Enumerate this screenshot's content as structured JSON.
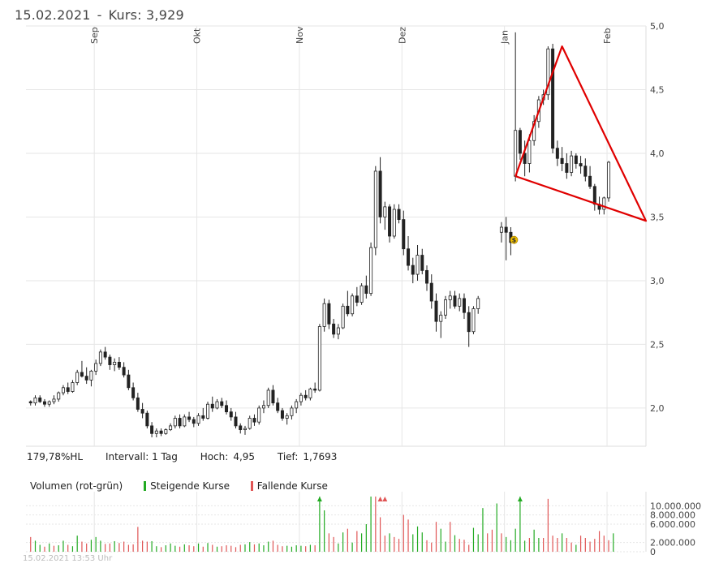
{
  "header": {
    "date": "15.02.2021",
    "separator": "-",
    "kurs_label": "Kurs:",
    "kurs_value": "3,929"
  },
  "stats": {
    "hl": "179,78%HL",
    "interval": "Intervall: 1 Tag",
    "hoch_label": "Hoch:",
    "hoch_value": "4,95",
    "tief_label": "Tief:",
    "tief_value": "1,7693"
  },
  "volume_legend": {
    "title": "Volumen (rot-grün)",
    "rising": "Steigende Kurse",
    "falling": "Fallende Kurse"
  },
  "colors": {
    "rising_volume": "#22aa22",
    "falling_volume": "#e05555",
    "triangle": "#e00000",
    "candle": "#222222",
    "grid": "#e6e6e6",
    "dividend_marker": "#f2c200"
  },
  "footer": {
    "timestamp": "15.02.2021 13:53 Uhr"
  },
  "chart_data": [
    {
      "type": "candlestick",
      "x_unit": "trading day",
      "month_labels": [
        {
          "label": "Sep",
          "day": 14
        },
        {
          "label": "Okt",
          "day": 36
        },
        {
          "label": "Nov",
          "day": 58
        },
        {
          "label": "Dez",
          "day": 80
        },
        {
          "label": "Jan",
          "day": 102
        },
        {
          "label": "Feb",
          "day": 124
        }
      ],
      "y_ticks": [
        "2,0",
        "2,5",
        "3,0",
        "3,5",
        "4,0",
        "4,5",
        "5,0"
      ],
      "ylim": [
        1.7,
        5.0
      ],
      "y_tick_values": [
        2.0,
        2.5,
        3.0,
        3.5,
        4.0,
        4.5,
        5.0
      ],
      "grid": true,
      "candles": [
        [
          2.05,
          2.06,
          2.02,
          2.04
        ],
        [
          2.04,
          2.1,
          2.02,
          2.08
        ],
        [
          2.08,
          2.1,
          2.04,
          2.05
        ],
        [
          2.05,
          2.07,
          2.01,
          2.03
        ],
        [
          2.03,
          2.06,
          2.01,
          2.05
        ],
        [
          2.05,
          2.1,
          2.03,
          2.07
        ],
        [
          2.07,
          2.13,
          2.05,
          2.12
        ],
        [
          2.12,
          2.18,
          2.1,
          2.16
        ],
        [
          2.16,
          2.2,
          2.11,
          2.13
        ],
        [
          2.13,
          2.22,
          2.12,
          2.2
        ],
        [
          2.2,
          2.3,
          2.18,
          2.28
        ],
        [
          2.28,
          2.37,
          2.24,
          2.25
        ],
        [
          2.25,
          2.32,
          2.19,
          2.22
        ],
        [
          2.22,
          2.3,
          2.17,
          2.29
        ],
        [
          2.29,
          2.38,
          2.26,
          2.35
        ],
        [
          2.35,
          2.46,
          2.33,
          2.44
        ],
        [
          2.44,
          2.48,
          2.38,
          2.4
        ],
        [
          2.4,
          2.42,
          2.3,
          2.34
        ],
        [
          2.34,
          2.39,
          2.29,
          2.36
        ],
        [
          2.36,
          2.4,
          2.3,
          2.32
        ],
        [
          2.32,
          2.36,
          2.24,
          2.26
        ],
        [
          2.26,
          2.3,
          2.14,
          2.16
        ],
        [
          2.16,
          2.2,
          2.06,
          2.08
        ],
        [
          2.08,
          2.12,
          1.97,
          1.99
        ],
        [
          1.99,
          2.04,
          1.92,
          1.96
        ],
        [
          1.96,
          1.98,
          1.84,
          1.86
        ],
        [
          1.86,
          1.89,
          1.77,
          1.8
        ],
        [
          1.8,
          1.84,
          1.77,
          1.82
        ],
        [
          1.82,
          1.84,
          1.78,
          1.8
        ],
        [
          1.8,
          1.84,
          1.79,
          1.83
        ],
        [
          1.83,
          1.88,
          1.82,
          1.86
        ],
        [
          1.86,
          1.94,
          1.84,
          1.92
        ],
        [
          1.92,
          1.95,
          1.84,
          1.86
        ],
        [
          1.86,
          1.95,
          1.85,
          1.93
        ],
        [
          1.93,
          1.97,
          1.89,
          1.91
        ],
        [
          1.91,
          1.93,
          1.85,
          1.88
        ],
        [
          1.88,
          1.96,
          1.86,
          1.94
        ],
        [
          1.94,
          2.0,
          1.9,
          1.92
        ],
        [
          1.92,
          2.05,
          1.91,
          2.03
        ],
        [
          2.03,
          2.09,
          1.97,
          2.0
        ],
        [
          2.0,
          2.07,
          1.99,
          2.05
        ],
        [
          2.05,
          2.08,
          2.0,
          2.02
        ],
        [
          2.02,
          2.06,
          1.95,
          1.97
        ],
        [
          1.97,
          2.0,
          1.9,
          1.93
        ],
        [
          1.93,
          1.97,
          1.84,
          1.86
        ],
        [
          1.86,
          1.88,
          1.8,
          1.83
        ],
        [
          1.83,
          1.86,
          1.79,
          1.84
        ],
        [
          1.84,
          1.94,
          1.83,
          1.92
        ],
        [
          1.92,
          1.95,
          1.86,
          1.89
        ],
        [
          1.89,
          2.02,
          1.87,
          2.0
        ],
        [
          2.0,
          2.06,
          1.96,
          2.02
        ],
        [
          2.02,
          2.16,
          2.0,
          2.14
        ],
        [
          2.14,
          2.18,
          2.02,
          2.04
        ],
        [
          2.04,
          2.08,
          1.96,
          1.98
        ],
        [
          1.98,
          2.0,
          1.9,
          1.92
        ],
        [
          1.92,
          1.96,
          1.87,
          1.94
        ],
        [
          1.94,
          2.02,
          1.91,
          2.0
        ],
        [
          2.0,
          2.07,
          1.96,
          2.05
        ],
        [
          2.05,
          2.12,
          2.02,
          2.1
        ],
        [
          2.1,
          2.14,
          2.06,
          2.08
        ],
        [
          2.08,
          2.16,
          2.06,
          2.15
        ],
        [
          2.15,
          2.2,
          2.12,
          2.14
        ],
        [
          2.14,
          2.66,
          2.13,
          2.64
        ],
        [
          2.64,
          2.86,
          2.6,
          2.82
        ],
        [
          2.82,
          2.85,
          2.62,
          2.66
        ],
        [
          2.66,
          2.7,
          2.55,
          2.58
        ],
        [
          2.58,
          2.66,
          2.54,
          2.63
        ],
        [
          2.63,
          2.82,
          2.62,
          2.8
        ],
        [
          2.8,
          2.92,
          2.72,
          2.74
        ],
        [
          2.74,
          2.9,
          2.72,
          2.88
        ],
        [
          2.88,
          2.95,
          2.8,
          2.83
        ],
        [
          2.83,
          2.98,
          2.81,
          2.96
        ],
        [
          2.96,
          3.04,
          2.86,
          2.9
        ],
        [
          2.9,
          3.3,
          2.88,
          3.26
        ],
        [
          3.26,
          3.9,
          3.2,
          3.86
        ],
        [
          3.86,
          3.97,
          3.45,
          3.5
        ],
        [
          3.5,
          3.62,
          3.4,
          3.58
        ],
        [
          3.58,
          3.6,
          3.3,
          3.35
        ],
        [
          3.35,
          3.6,
          3.33,
          3.56
        ],
        [
          3.56,
          3.6,
          3.45,
          3.48
        ],
        [
          3.48,
          3.55,
          3.2,
          3.25
        ],
        [
          3.25,
          3.35,
          3.08,
          3.12
        ],
        [
          3.12,
          3.18,
          2.98,
          3.05
        ],
        [
          3.05,
          3.28,
          3.0,
          3.2
        ],
        [
          3.2,
          3.25,
          3.05,
          3.08
        ],
        [
          3.08,
          3.12,
          2.92,
          2.98
        ],
        [
          2.98,
          3.05,
          2.78,
          2.84
        ],
        [
          2.84,
          2.9,
          2.6,
          2.68
        ],
        [
          2.68,
          2.76,
          2.55,
          2.73
        ],
        [
          2.73,
          2.88,
          2.7,
          2.85
        ],
        [
          2.85,
          2.92,
          2.78,
          2.88
        ],
        [
          2.88,
          2.92,
          2.78,
          2.8
        ],
        [
          2.8,
          2.9,
          2.76,
          2.86
        ],
        [
          2.86,
          2.9,
          2.7,
          2.75
        ],
        [
          2.75,
          2.8,
          2.48,
          2.6
        ],
        [
          2.6,
          2.8,
          2.58,
          2.78
        ],
        [
          2.78,
          2.88,
          2.74,
          2.86
        ],
        [
          3.38,
          3.46,
          3.3,
          3.42
        ],
        [
          3.42,
          3.5,
          3.16,
          3.38
        ],
        [
          3.38,
          3.42,
          3.2,
          3.3
        ],
        [
          3.82,
          4.95,
          3.78,
          4.18
        ],
        [
          4.18,
          4.2,
          3.95,
          4.0
        ],
        [
          4.0,
          4.1,
          3.82,
          3.92
        ],
        [
          3.92,
          4.15,
          3.85,
          4.1
        ],
        [
          4.1,
          4.3,
          4.06,
          4.25
        ],
        [
          4.25,
          4.45,
          4.2,
          4.42
        ],
        [
          4.42,
          4.5,
          4.38,
          4.46
        ],
        [
          4.46,
          4.84,
          4.42,
          4.82
        ],
        [
          4.82,
          4.86,
          4.0,
          4.04
        ],
        [
          4.04,
          4.1,
          3.9,
          3.96
        ],
        [
          3.96,
          4.05,
          3.86,
          3.92
        ],
        [
          3.92,
          4.0,
          3.8,
          3.85
        ],
        [
          3.85,
          4.02,
          3.82,
          3.98
        ],
        [
          3.98,
          4.0,
          3.88,
          3.92
        ],
        [
          3.92,
          3.98,
          3.84,
          3.9
        ],
        [
          3.9,
          3.96,
          3.78,
          3.82
        ],
        [
          3.82,
          3.9,
          3.72,
          3.74
        ],
        [
          3.74,
          3.76,
          3.55,
          3.6
        ],
        [
          3.6,
          3.66,
          3.52,
          3.56
        ],
        [
          3.56,
          3.66,
          3.52,
          3.65
        ],
        [
          3.65,
          3.94,
          3.62,
          3.93
        ]
      ],
      "candle_days": [
        0,
        1,
        2,
        3,
        4,
        5,
        6,
        7,
        8,
        9,
        10,
        11,
        12,
        13,
        14,
        15,
        16,
        17,
        18,
        19,
        20,
        21,
        22,
        23,
        24,
        25,
        26,
        27,
        28,
        29,
        30,
        31,
        32,
        33,
        34,
        35,
        36,
        37,
        38,
        39,
        40,
        41,
        42,
        43,
        44,
        45,
        46,
        47,
        48,
        49,
        50,
        51,
        52,
        53,
        54,
        55,
        56,
        57,
        58,
        59,
        60,
        61,
        62,
        63,
        64,
        65,
        66,
        67,
        68,
        69,
        70,
        71,
        72,
        73,
        74,
        75,
        76,
        77,
        78,
        79,
        80,
        81,
        82,
        83,
        84,
        85,
        86,
        87,
        88,
        89,
        90,
        91,
        92,
        93,
        94,
        95,
        96,
        101,
        102,
        103,
        104,
        105,
        106,
        107,
        108,
        109,
        110,
        111,
        112,
        113,
        114,
        115,
        116,
        117,
        118,
        119,
        120,
        121,
        122,
        123,
        124
      ],
      "dividend_marker": {
        "day": 103,
        "value": 3.32,
        "label": "$"
      },
      "triangle": [
        [
          104,
          3.82
        ],
        [
          114,
          4.84
        ],
        [
          132,
          3.47
        ],
        [
          104,
          3.82
        ]
      ]
    },
    {
      "type": "bar",
      "name": "Volumen",
      "y_ticks": [
        "0",
        "2.000.000",
        "6.000.000",
        "8.000.000",
        "10.000.000"
      ],
      "y_tick_values": [
        0,
        2000000,
        6000000,
        8000000,
        10000000
      ],
      "ylim": [
        0,
        12000000
      ],
      "overflow_markers_days": [
        62,
        75,
        76,
        105
      ],
      "values": [
        3200000,
        2400000,
        1500000,
        1100000,
        1800000,
        1300000,
        1400000,
        2400000,
        1500000,
        1200000,
        3500000,
        2200000,
        1800000,
        2600000,
        3200000,
        2400000,
        1700000,
        1800000,
        2300000,
        1900000,
        2200000,
        1500000,
        1600000,
        5400000,
        2400000,
        2200000,
        2300000,
        1200000,
        1000000,
        1400000,
        1800000,
        1300000,
        1100000,
        1600000,
        1400000,
        1200000,
        1800000,
        1100000,
        1900000,
        1500000,
        1100000,
        1200000,
        1400000,
        1300000,
        1000000,
        1500000,
        1600000,
        2100000,
        1600000,
        1800000,
        1400000,
        2200000,
        2400000,
        1500000,
        1200000,
        1300000,
        1100000,
        1400000,
        1300000,
        1200000,
        1500000,
        1400000,
        12500000,
        9000000,
        4000000,
        3200000,
        1800000,
        4200000,
        5000000,
        2000000,
        4500000,
        4000000,
        6000000,
        12500000,
        12500000,
        7500000,
        3500000,
        4000000,
        3200000,
        2800000,
        8000000,
        7000000,
        3800000,
        5500000,
        4200000,
        2500000,
        2000000,
        6500000,
        5000000,
        2200000,
        6500000,
        3600000,
        2800000,
        2600000,
        1500000,
        5200000,
        3800000,
        9500000,
        4000000,
        4800000,
        10500000,
        4000000,
        3200000,
        2500000,
        5000000,
        12500000,
        2400000,
        3000000,
        4800000,
        3000000,
        3000000,
        11500000,
        3500000,
        3000000,
        4000000,
        3000000,
        2000000,
        1500000,
        3500000,
        3000000,
        2200000,
        2800000,
        4500000,
        3500000,
        2500000,
        4000000
      ],
      "directions": [
        "r",
        "g",
        "g",
        "r",
        "g",
        "r",
        "g",
        "g",
        "r",
        "g",
        "g",
        "r",
        "r",
        "g",
        "g",
        "g",
        "r",
        "r",
        "g",
        "r",
        "r",
        "r",
        "r",
        "r",
        "r",
        "r",
        "g",
        "g",
        "r",
        "g",
        "g",
        "g",
        "r",
        "g",
        "r",
        "r",
        "g",
        "r",
        "g",
        "r",
        "g",
        "r",
        "r",
        "r",
        "r",
        "r",
        "g",
        "g",
        "r",
        "g",
        "g",
        "g",
        "r",
        "r",
        "r",
        "g",
        "g",
        "g",
        "g",
        "r",
        "g",
        "r",
        "g",
        "g",
        "r",
        "r",
        "g",
        "g",
        "r",
        "g",
        "r",
        "g",
        "g",
        "g",
        "r",
        "r",
        "r",
        "g",
        "r",
        "r",
        "r",
        "r",
        "g",
        "g",
        "g",
        "r",
        "r",
        "r",
        "g",
        "g",
        "r",
        "g",
        "r",
        "r",
        "r",
        "g",
        "g",
        "g",
        "r",
        "r",
        "g",
        "r",
        "g",
        "g",
        "g",
        "g",
        "g",
        "r",
        "g",
        "g",
        "r",
        "r",
        "r",
        "r",
        "g",
        "r",
        "r",
        "g",
        "r",
        "r",
        "r",
        "r",
        "r",
        "r",
        "r",
        "g"
      ]
    }
  ]
}
